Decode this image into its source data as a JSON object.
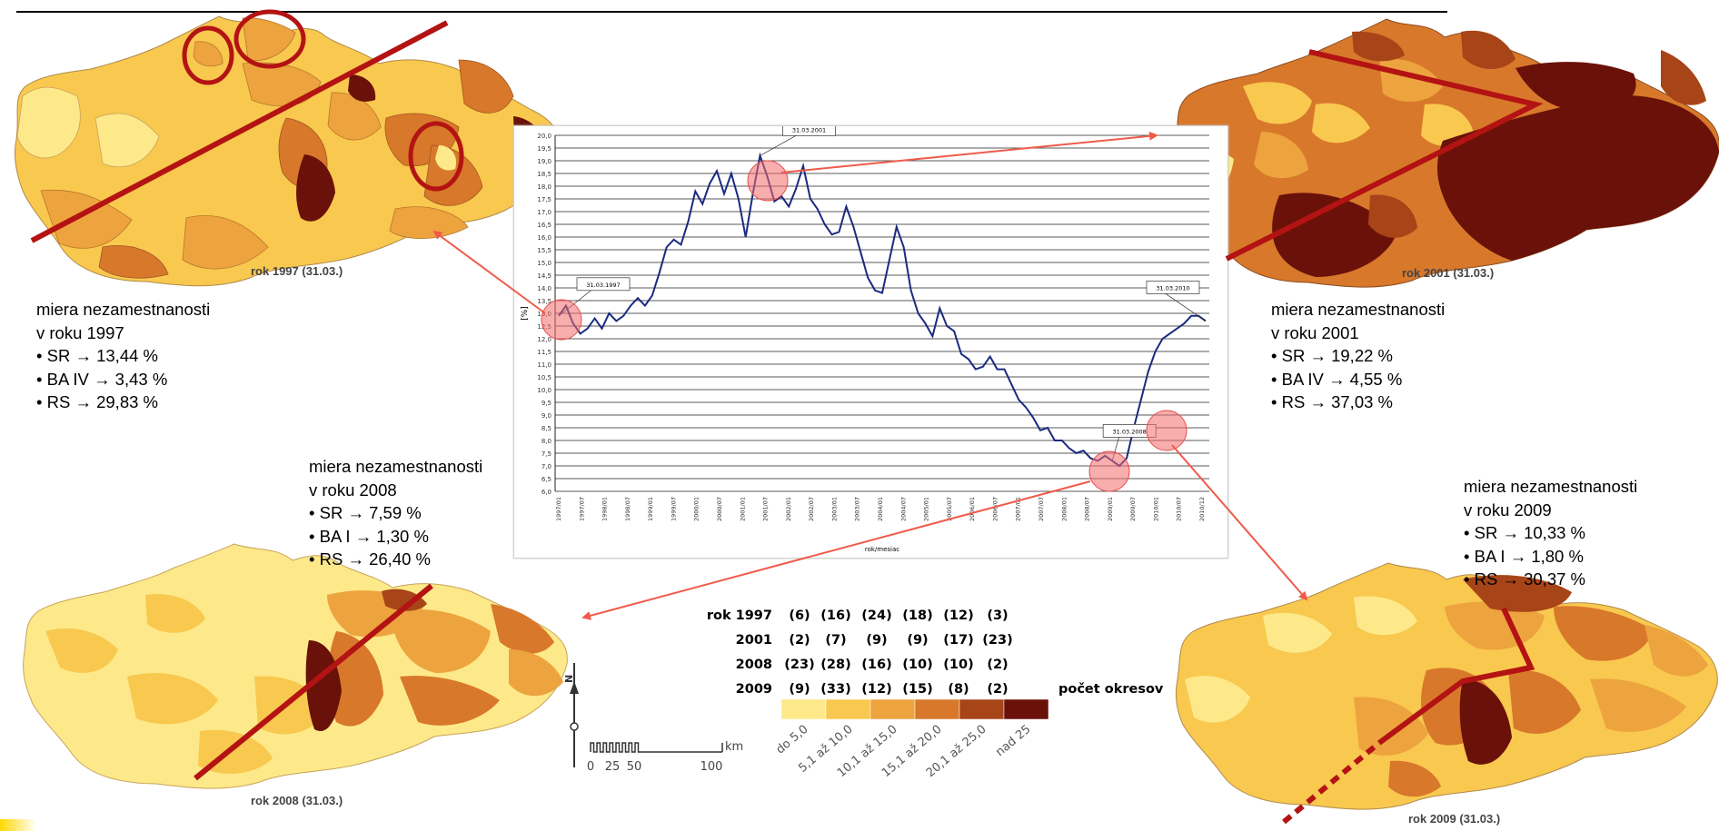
{
  "maps": [
    {
      "id": "1997",
      "caption": "rok 1997 (31.03.)"
    },
    {
      "id": "2001",
      "caption": "rok 2001 (31.03.)"
    },
    {
      "id": "2008",
      "caption": "rok 2008 (31.03.)"
    },
    {
      "id": "2009",
      "caption": "rok 2009 (31.03.)"
    }
  ],
  "stats": [
    {
      "id": "1997",
      "title1": "miera nezamestnanosti",
      "title2": "v roku 1997",
      "lines": [
        "• SR → 13,44 %",
        "• BA IV → 3,43 %",
        "• RS → 29,83 %"
      ]
    },
    {
      "id": "2001",
      "title1": "miera nezamestnanosti",
      "title2": "v roku 2001",
      "lines": [
        "• SR → 19,22 %",
        "• BA IV → 4,55 %",
        "• RS → 37,03 %"
      ]
    },
    {
      "id": "2008",
      "title1": "miera nezamestnanosti",
      "title2": "v roku 2008",
      "lines": [
        "• SR → 7,59 %",
        "• BA I → 1,30 %",
        "• RS → 26,40 %"
      ]
    },
    {
      "id": "2009",
      "title1": "miera nezamestnanosti",
      "title2": "v roku 2009",
      "lines": [
        "• SR → 10,33 %",
        "• BA I → 1,80 %",
        "• RS → 30,37 %"
      ]
    }
  ],
  "legend": {
    "rows": [
      {
        "label": "rok 1997",
        "counts": [
          "(6)",
          "(16)",
          "(24)",
          "(18)",
          "(12)",
          "(3)"
        ]
      },
      {
        "label": "2001",
        "counts": [
          "(2)",
          "(7)",
          "(9)",
          "(9)",
          "(17)",
          "(23)"
        ]
      },
      {
        "label": "2008",
        "counts": [
          "(23)",
          "(28)",
          "(16)",
          "(10)",
          "(10)",
          "(2)"
        ]
      },
      {
        "label": "2009",
        "counts": [
          "(9)",
          "(33)",
          "(12)",
          "(15)",
          "(8)",
          "(2)"
        ]
      }
    ],
    "count_label": "počet okresov",
    "classes": [
      "do 5,0",
      "5,1 až 10,0",
      "10,1 až 15,0",
      "15,1 až 20,0",
      "20,1 až 25,0",
      "nad 25"
    ],
    "colors": [
      "#fde98a",
      "#f9c84f",
      "#eda33e",
      "#d8782b",
      "#a74418",
      "#6a1109"
    ],
    "scale_unit": "km",
    "scale_ticks": [
      "0",
      "25",
      "50",
      "100"
    ]
  },
  "chart_data": {
    "type": "line",
    "ylabel": "[%]",
    "xlabel": "rok/mesiac",
    "ylim": [
      6.0,
      20.0
    ],
    "yticks": [
      "6,0",
      "6,5",
      "7,0",
      "7,5",
      "8,0",
      "8,5",
      "9,0",
      "9,5",
      "10,0",
      "10,5",
      "11,0",
      "11,5",
      "12,0",
      "12,5",
      "13,0",
      "13,5",
      "14,0",
      "14,5",
      "15,0",
      "15,5",
      "16,0",
      "16,5",
      "17,0",
      "17,5",
      "18,0",
      "18,5",
      "19,0",
      "19,5",
      "20,0"
    ],
    "xticks": [
      "1997/01",
      "1997/07",
      "1998/01",
      "1998/07",
      "1999/01",
      "1999/07",
      "2000/01",
      "2000/07",
      "2001/01",
      "2001/07",
      "2002/01",
      "2002/07",
      "2003/01",
      "2003/07",
      "2004/01",
      "2004/07",
      "2005/01",
      "2005/07",
      "2006/01",
      "2006/07",
      "2007/01",
      "2007/07",
      "2008/01",
      "2008/07",
      "2009/01",
      "2009/07",
      "2010/01",
      "2010/07",
      "2010/12"
    ],
    "series": [
      {
        "values": [
          12.9,
          13.3,
          12.6,
          12.2,
          12.4,
          12.8,
          12.4,
          13.0,
          12.7,
          12.9,
          13.3,
          13.6,
          13.3,
          13.7,
          14.6,
          15.6,
          15.9,
          15.7,
          16.6,
          17.8,
          17.3,
          18.1,
          18.6,
          17.7,
          18.5,
          17.5,
          16.0,
          17.7,
          19.2,
          18.4,
          17.4,
          17.6,
          17.2,
          17.9,
          18.8,
          17.5,
          17.1,
          16.5,
          16.1,
          16.2,
          17.2,
          16.4,
          15.4,
          14.4,
          13.9,
          13.8,
          15.1,
          16.4,
          15.6,
          13.9,
          13.0,
          12.6,
          12.1,
          13.2,
          12.5,
          12.3,
          11.4,
          11.2,
          10.8,
          10.9,
          11.3,
          10.8,
          10.8,
          10.2,
          9.6,
          9.3,
          8.9,
          8.4,
          8.5,
          8.0,
          8.0,
          7.7,
          7.5,
          7.6,
          7.3,
          7.2,
          7.4,
          7.2,
          7.0,
          7.3,
          8.5,
          9.6,
          10.7,
          11.5,
          12.0,
          12.2,
          12.4,
          12.6,
          12.9,
          12.9,
          12.7
        ]
      }
    ],
    "annotations": [
      "31.03.1997",
      "31.03.2001",
      "31.03.2008",
      "31.03.2010"
    ]
  }
}
